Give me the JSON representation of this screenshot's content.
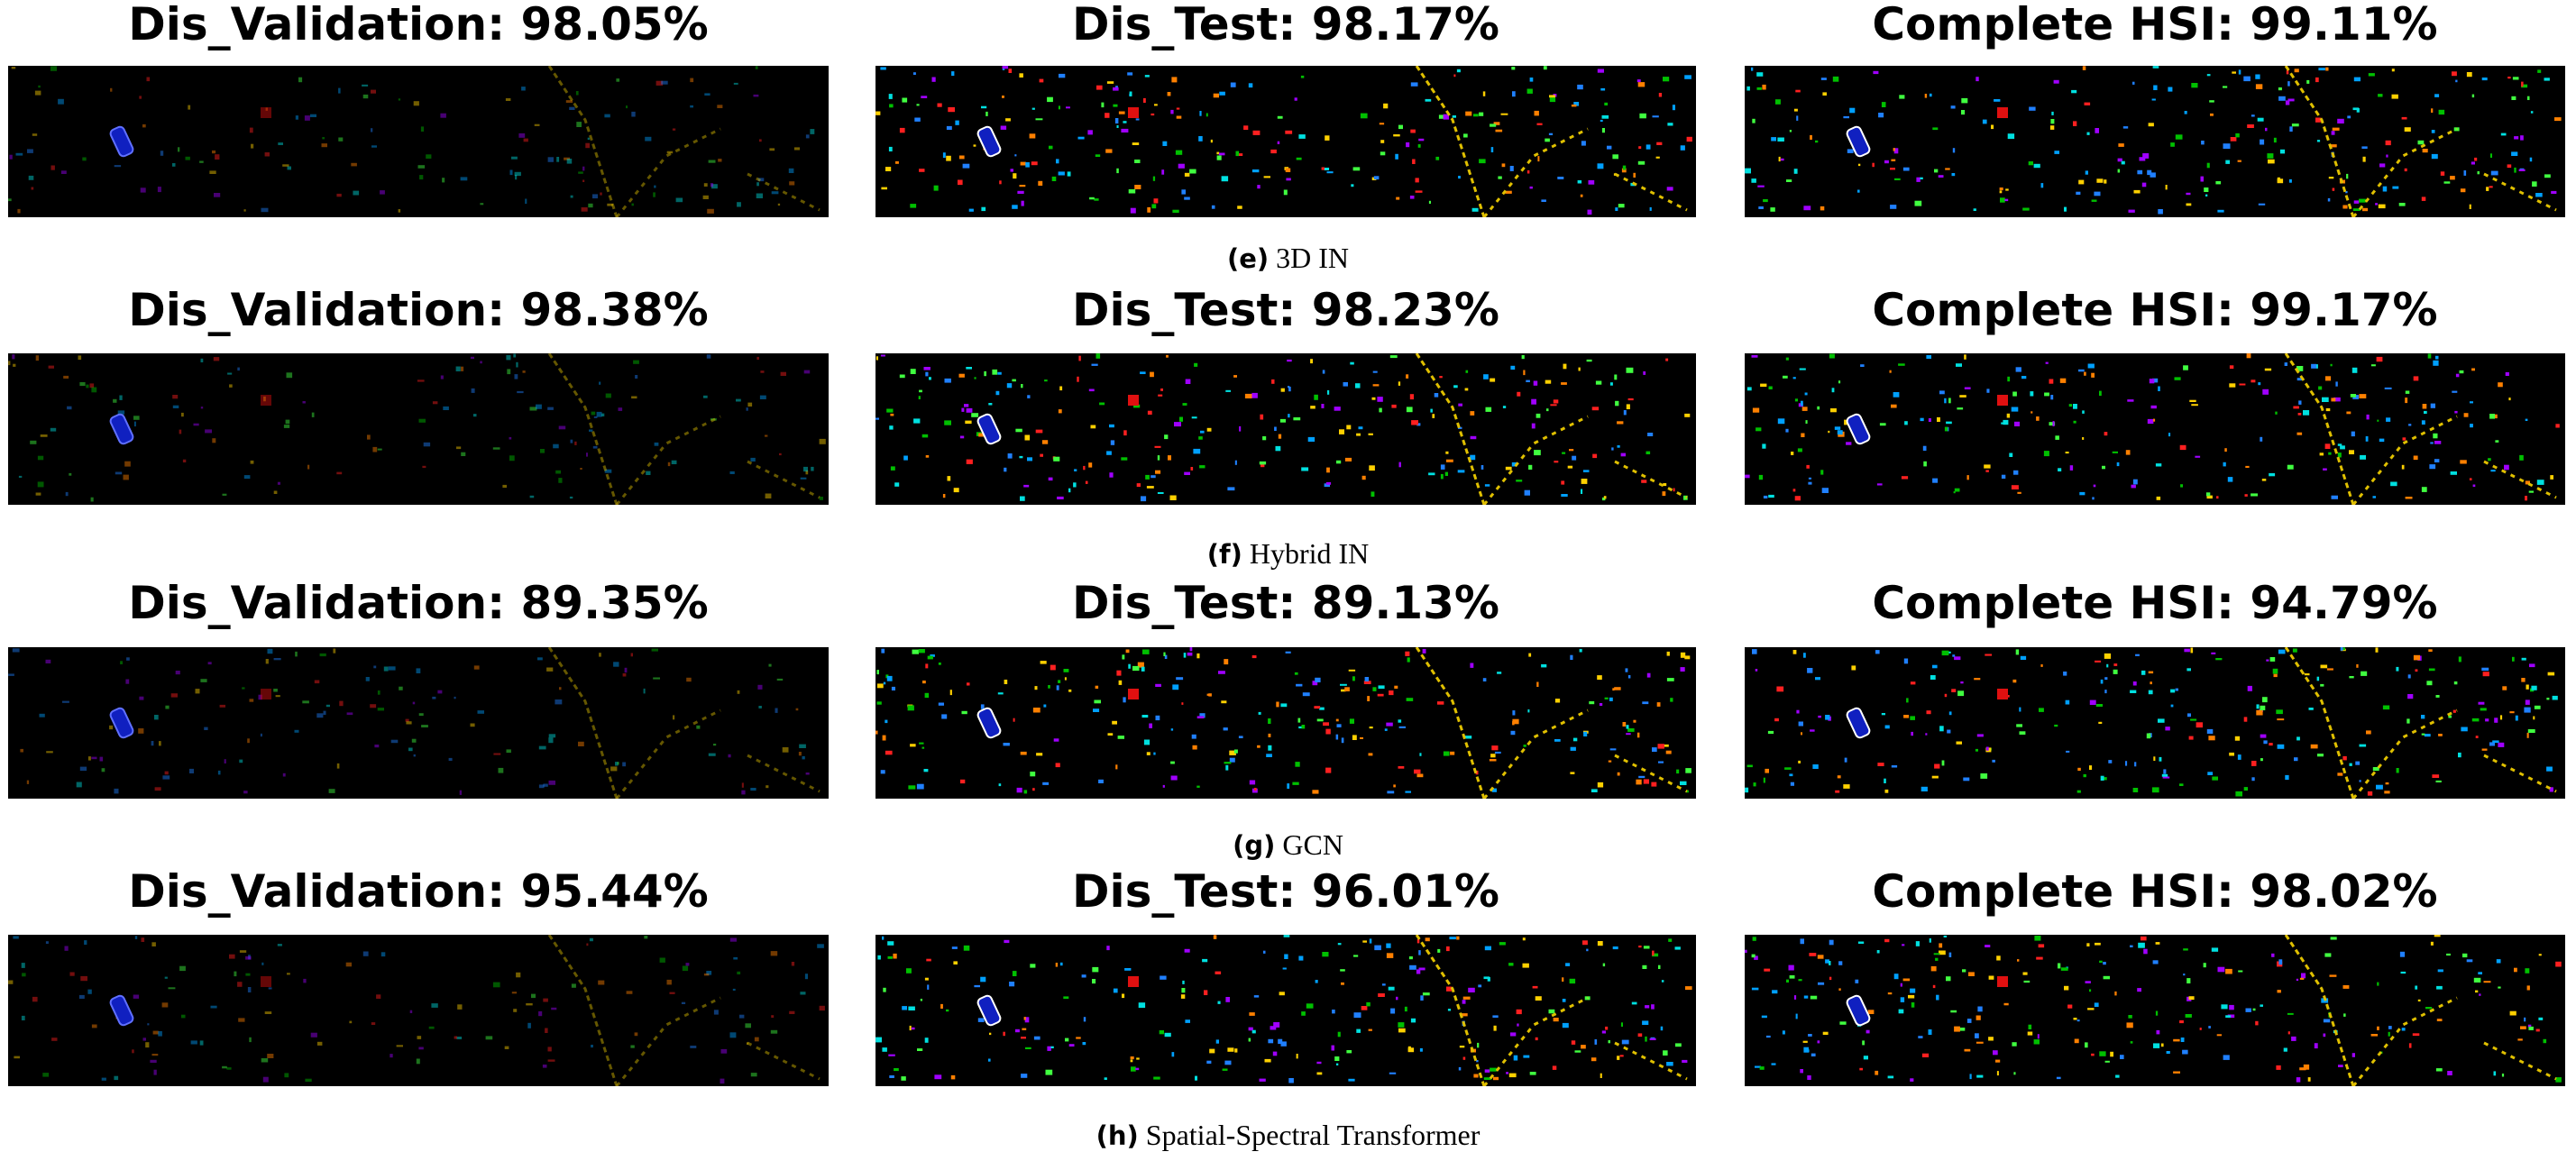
{
  "rows": [
    {
      "panels": [
        {
          "title": "Dis_Validation: 98.05%"
        },
        {
          "title": "Dis_Test: 98.17%"
        },
        {
          "title": "Complete HSI: 99.11%"
        }
      ],
      "caption": {
        "label": "(e)",
        "text": "3D IN"
      }
    },
    {
      "panels": [
        {
          "title": "Dis_Validation: 98.38%"
        },
        {
          "title": "Dis_Test: 98.23%"
        },
        {
          "title": "Complete HSI: 99.17%"
        }
      ],
      "caption": {
        "label": "(f)",
        "text": "Hybrid IN"
      }
    },
    {
      "panels": [
        {
          "title": "Dis_Validation: 89.35%"
        },
        {
          "title": "Dis_Test: 89.13%"
        },
        {
          "title": "Complete HSI: 94.79%"
        }
      ],
      "caption": {
        "label": "(g)",
        "text": "GCN"
      }
    },
    {
      "panels": [
        {
          "title": "Dis_Validation: 95.44%"
        },
        {
          "title": "Dis_Test: 96.01%"
        },
        {
          "title": "Complete HSI: 98.02%"
        }
      ],
      "caption": {
        "label": "(h)",
        "text": "Spatial-Spectral Transformer"
      }
    }
  ]
}
